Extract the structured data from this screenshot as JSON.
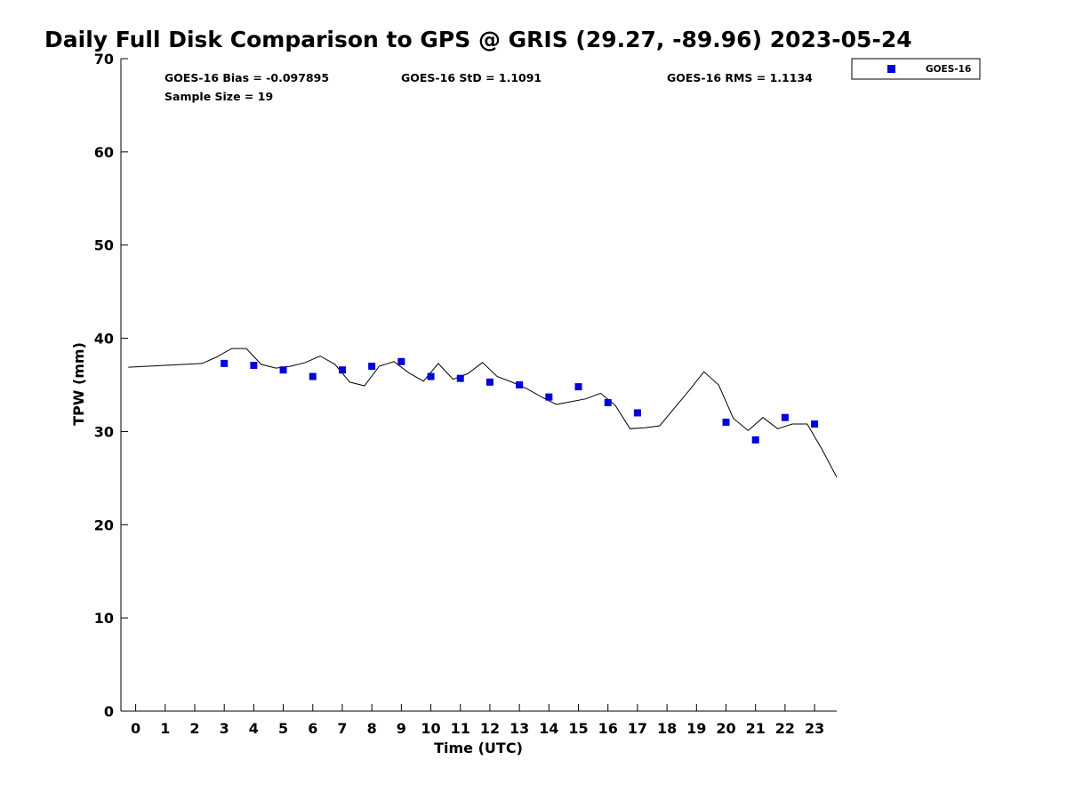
{
  "chart_data": {
    "type": "scatter",
    "title": "Daily Full Disk Comparison to GPS @ GRIS (29.27, -89.96) 2023-05-24",
    "xlabel": "Time (UTC)",
    "ylabel": "TPW (mm)",
    "xlim": [
      -0.5,
      23.75
    ],
    "ylim": [
      0,
      70
    ],
    "x_ticks": [
      0,
      1,
      2,
      3,
      4,
      5,
      6,
      7,
      8,
      9,
      10,
      11,
      12,
      13,
      14,
      15,
      16,
      17,
      18,
      19,
      20,
      21,
      22,
      23
    ],
    "y_ticks": [
      0,
      10,
      20,
      30,
      40,
      50,
      60,
      70
    ],
    "grid": false,
    "legend_position": "top-right (outside plot)",
    "stats": {
      "bias": "GOES-16 Bias = -0.097895",
      "std": "GOES-16 StD = 1.1091",
      "rms": "GOES-16 RMS = 1.1134",
      "sample_size": "Sample Size = 19"
    },
    "series": [
      {
        "name": "GOES-16",
        "style": "markers",
        "color": "#0000dd",
        "marker": "square",
        "x": [
          3,
          4,
          5,
          6,
          7,
          8,
          9,
          10,
          11,
          12,
          13,
          14,
          15,
          16,
          17,
          20,
          21,
          22,
          23
        ],
        "y": [
          37.3,
          37.1,
          36.6,
          35.9,
          36.6,
          37.0,
          37.5,
          35.9,
          35.7,
          35.3,
          35.0,
          33.7,
          34.8,
          33.1,
          32.0,
          31.0,
          29.1,
          31.5,
          30.8
        ]
      },
      {
        "style": "line",
        "color": "#000000",
        "x": [
          -0.25,
          2.25,
          2.75,
          3.25,
          3.75,
          4.25,
          4.75,
          5.25,
          5.75,
          6.25,
          6.75,
          7.25,
          7.75,
          8.25,
          8.75,
          9.25,
          9.75,
          10.25,
          10.75,
          11.25,
          11.75,
          12.25,
          12.75,
          13.25,
          13.75,
          14.25,
          14.75,
          15.25,
          15.75,
          16.25,
          16.75,
          17.25,
          17.75,
          18.25,
          18.75,
          19.25,
          19.75,
          20.25,
          20.75,
          21.25,
          21.75,
          22.25,
          22.75,
          23.25,
          23.75
        ],
        "y": [
          36.9,
          37.3,
          38.0,
          38.9,
          38.9,
          37.2,
          36.8,
          37.0,
          37.4,
          38.1,
          37.2,
          35.3,
          34.9,
          37.0,
          37.5,
          36.3,
          35.4,
          37.3,
          35.6,
          36.2,
          37.4,
          35.9,
          35.3,
          34.6,
          33.7,
          32.9,
          33.2,
          33.5,
          34.1,
          32.8,
          30.3,
          30.4,
          30.6,
          32.5,
          34.4,
          36.4,
          35.0,
          31.4,
          30.1,
          31.5,
          30.3,
          30.8,
          30.8,
          28.1,
          25.1
        ]
      }
    ]
  }
}
